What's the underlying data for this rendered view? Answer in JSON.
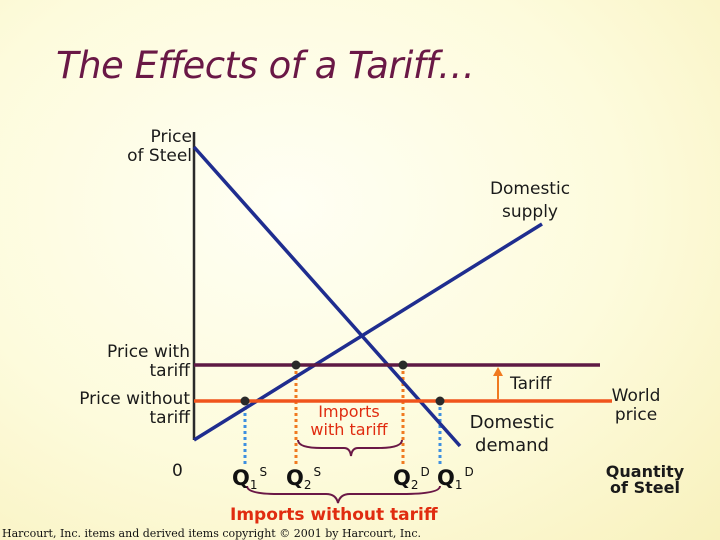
{
  "title": "The Effects of a Tariff…",
  "axes": {
    "y_label_line1": "Price",
    "y_label_line2": "of Steel",
    "x_label_line1": "Quantity",
    "x_label_line2": "of Steel",
    "origin": "0"
  },
  "labels": {
    "domestic_supply_line1": "Domestic",
    "domestic_supply_line2": "supply",
    "domestic_demand_line1": "Domestic",
    "domestic_demand_line2": "demand",
    "price_with_tariff_line1": "Price with",
    "price_with_tariff_line2": "tariff",
    "price_without_tariff_line1": "Price without",
    "price_without_tariff_line2": "tariff",
    "tariff": "Tariff",
    "world_price_line1": "World",
    "world_price_line2": "price",
    "imports_with_tariff_line1": "Imports",
    "imports_with_tariff_line2": "with tariff",
    "imports_without_tariff": "Imports without tariff"
  },
  "quantities": {
    "q1s": {
      "base": "Q",
      "sub": "1",
      "sup": "S"
    },
    "q2s": {
      "base": "Q",
      "sub": "2",
      "sup": "S"
    },
    "q2d": {
      "base": "Q",
      "sub": "2",
      "sup": "D"
    },
    "q1d": {
      "base": "Q",
      "sub": "1",
      "sup": "D"
    }
  },
  "copyright": "Harcourt, Inc. items and derived items copyright © 2001 by Harcourt, Inc.",
  "colors": {
    "title": "#6a1846",
    "curves": "#1f2d8f",
    "world_price_line": "#f0541c",
    "tariff_price_line": "#5e1a44",
    "orange_dotted": "#f07a20",
    "blue_dotted": "#3d8fe0",
    "tariff_arrow": "#f07a20",
    "brace": "#6a1846"
  }
}
